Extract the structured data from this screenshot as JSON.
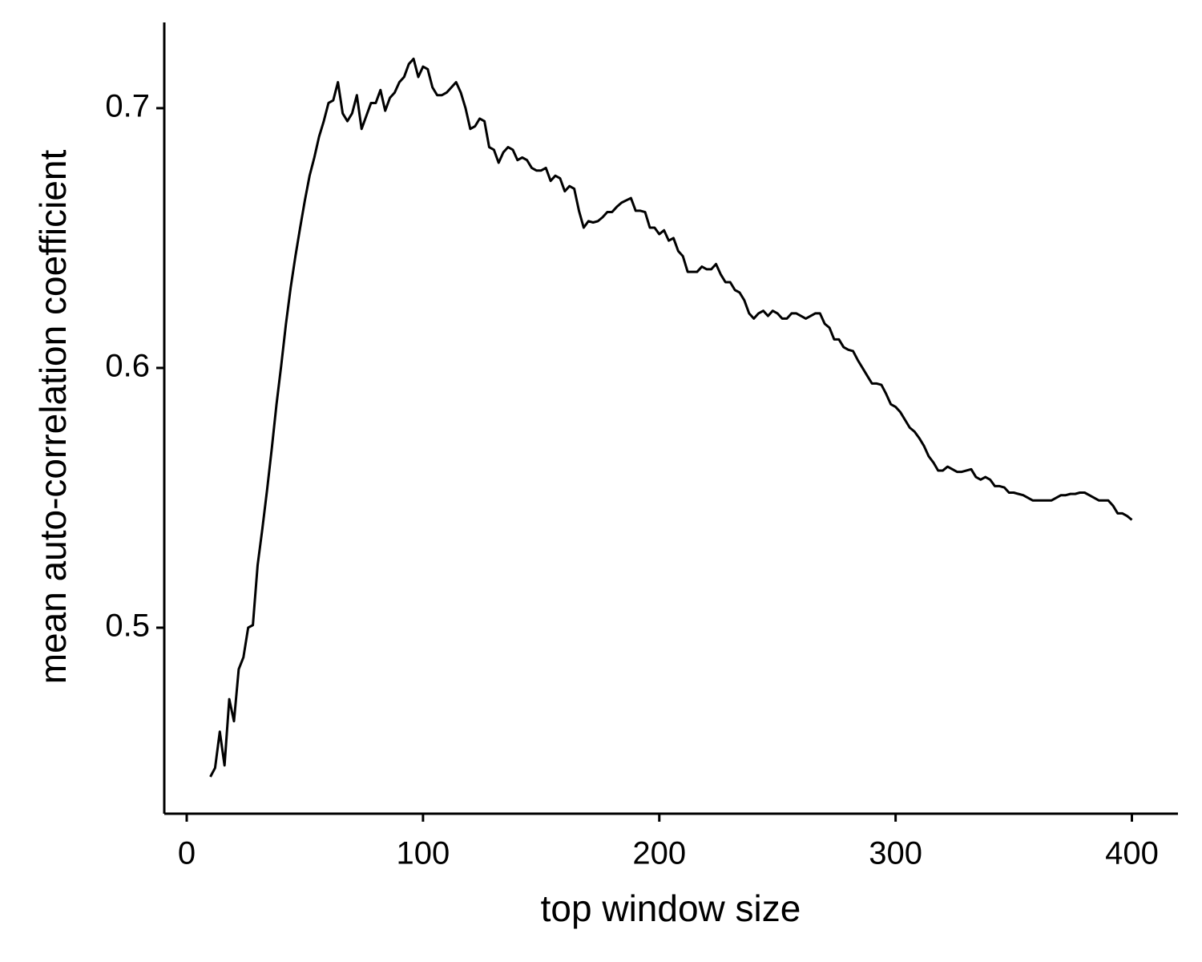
{
  "chart_data": {
    "type": "line",
    "x_label": "top window size",
    "y_label": "mean auto-correlation coefficient",
    "xlim": [
      -9.5,
      419.5
    ],
    "ylim": [
      0.4284,
      0.733
    ],
    "xticks": [
      0,
      100,
      200,
      300,
      400
    ],
    "yticks": [
      0.5,
      0.6,
      0.7
    ],
    "x": [
      10,
      12,
      14,
      16,
      18,
      20,
      22,
      24,
      26,
      28,
      30,
      32,
      34,
      36,
      38,
      40,
      42,
      44,
      46,
      48,
      50,
      52,
      54,
      56,
      58,
      60,
      62,
      64,
      66,
      68,
      70,
      72,
      74,
      76,
      78,
      80,
      82,
      84,
      86,
      88,
      90,
      92,
      94,
      96,
      98,
      100,
      102,
      104,
      106,
      108,
      110,
      112,
      114,
      116,
      118,
      120,
      122,
      124,
      126,
      128,
      130,
      132,
      134,
      136,
      138,
      140,
      142,
      144,
      146,
      148,
      150,
      152,
      154,
      156,
      158,
      160,
      162,
      164,
      166,
      168,
      170,
      172,
      174,
      176,
      178,
      180,
      182,
      184,
      186,
      188,
      190,
      192,
      194,
      196,
      198,
      200,
      202,
      204,
      206,
      208,
      210,
      212,
      214,
      216,
      218,
      220,
      222,
      224,
      226,
      228,
      230,
      232,
      234,
      236,
      238,
      240,
      242,
      244,
      246,
      248,
      250,
      252,
      254,
      256,
      258,
      260,
      262,
      264,
      266,
      268,
      270,
      272,
      274,
      276,
      278,
      280,
      282,
      284,
      286,
      288,
      290,
      292,
      294,
      296,
      298,
      300,
      302,
      304,
      306,
      308,
      310,
      312,
      314,
      316,
      318,
      320,
      322,
      324,
      326,
      328,
      330,
      332,
      334,
      336,
      338,
      340,
      342,
      344,
      346,
      348,
      350,
      352,
      354,
      356,
      358,
      360,
      362,
      364,
      366,
      368,
      370,
      372,
      374,
      376,
      378,
      380,
      382,
      384,
      386,
      388,
      390,
      392,
      394,
      396,
      398,
      400
    ],
    "series": [
      {
        "color": "#000000",
        "values": [
          0.4426,
          0.446,
          0.46,
          0.447,
          0.4725,
          0.464,
          0.484,
          0.4886,
          0.5,
          0.501,
          0.524,
          0.538,
          0.553,
          0.569,
          0.586,
          0.601,
          0.617,
          0.631,
          0.643,
          0.654,
          0.6645,
          0.674,
          0.681,
          0.689,
          0.695,
          0.702,
          0.703,
          0.71,
          0.698,
          0.695,
          0.698,
          0.705,
          0.692,
          0.697,
          0.702,
          0.702,
          0.707,
          0.699,
          0.704,
          0.706,
          0.71,
          0.712,
          0.717,
          0.719,
          0.712,
          0.716,
          0.715,
          0.708,
          0.705,
          0.705,
          0.706,
          0.708,
          0.71,
          0.706,
          0.7,
          0.692,
          0.693,
          0.696,
          0.695,
          0.685,
          0.684,
          0.679,
          0.683,
          0.685,
          0.684,
          0.68,
          0.681,
          0.68,
          0.677,
          0.676,
          0.676,
          0.677,
          0.672,
          0.674,
          0.673,
          0.668,
          0.67,
          0.669,
          0.6605,
          0.654,
          0.6565,
          0.656,
          0.6565,
          0.658,
          0.66,
          0.66,
          0.662,
          0.6636,
          0.6645,
          0.6654,
          0.6605,
          0.6605,
          0.66,
          0.654,
          0.654,
          0.6515,
          0.653,
          0.649,
          0.65,
          0.645,
          0.643,
          0.637,
          0.637,
          0.637,
          0.639,
          0.638,
          0.638,
          0.64,
          0.636,
          0.633,
          0.633,
          0.63,
          0.629,
          0.626,
          0.621,
          0.619,
          0.621,
          0.622,
          0.62,
          0.622,
          0.621,
          0.619,
          0.619,
          0.621,
          0.621,
          0.62,
          0.619,
          0.62,
          0.621,
          0.621,
          0.617,
          0.6155,
          0.611,
          0.611,
          0.608,
          0.607,
          0.6065,
          0.603,
          0.6,
          0.597,
          0.594,
          0.594,
          0.5935,
          0.59,
          0.586,
          0.585,
          0.583,
          0.58,
          0.577,
          0.5755,
          0.573,
          0.57,
          0.566,
          0.5636,
          0.5605,
          0.5605,
          0.562,
          0.561,
          0.56,
          0.56,
          0.5605,
          0.561,
          0.558,
          0.557,
          0.558,
          0.557,
          0.5545,
          0.5545,
          0.554,
          0.552,
          0.552,
          0.5515,
          0.551,
          0.55,
          0.549,
          0.549,
          0.549,
          0.549,
          0.549,
          0.55,
          0.551,
          0.551,
          0.5515,
          0.5515,
          0.552,
          0.552,
          0.551,
          0.55,
          0.549,
          0.549,
          0.549,
          0.547,
          0.544,
          0.544,
          0.543,
          0.5415
        ]
      }
    ]
  }
}
